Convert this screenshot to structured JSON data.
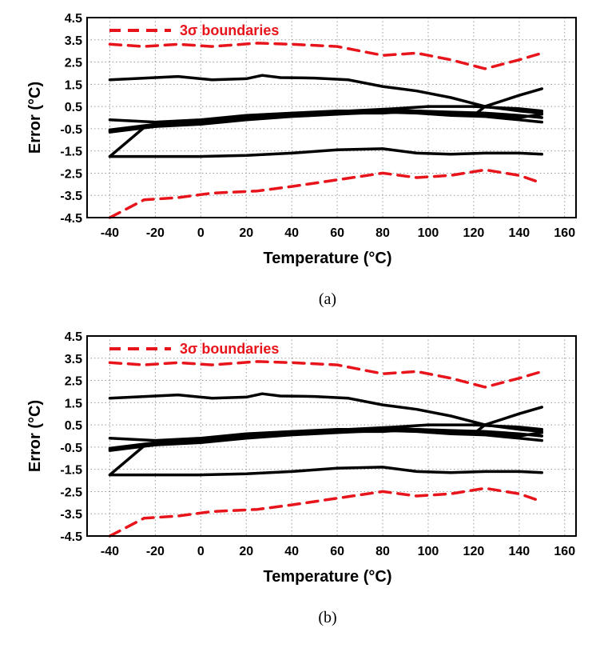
{
  "chart_data": [
    {
      "type": "line",
      "caption": "(a)",
      "xlabel": "Temperature (°C)",
      "ylabel": "Error (°C)",
      "xlim": [
        -50,
        165
      ],
      "ylim": [
        -4.5,
        4.5
      ],
      "xticks": [
        -40,
        -20,
        0,
        20,
        40,
        60,
        80,
        100,
        120,
        140,
        160
      ],
      "yticks": [
        "4.5",
        "3.5",
        "2.5",
        "1.5",
        "0.5",
        "-0.5",
        "-1.5",
        "-2.5",
        "-3.5",
        "-4.5"
      ],
      "grid": true,
      "legend": {
        "placement": "top-left",
        "entries": [
          "3σ boundaries"
        ]
      },
      "series": [
        {
          "name": "3σ boundaries",
          "role": "upper",
          "color": "#e8141b",
          "dash": true,
          "x": [
            -40,
            -25,
            -10,
            5,
            25,
            40,
            60,
            80,
            95,
            110,
            125,
            140,
            150
          ],
          "y": [
            3.3,
            3.2,
            3.3,
            3.2,
            3.35,
            3.3,
            3.2,
            2.8,
            2.9,
            2.6,
            2.2,
            2.6,
            2.9
          ]
        },
        {
          "role": "lower",
          "color": "#e8141b",
          "dash": true,
          "x": [
            -40,
            -25,
            -10,
            5,
            25,
            40,
            60,
            80,
            95,
            110,
            125,
            140,
            150
          ],
          "y": [
            -4.5,
            -3.7,
            -3.6,
            -3.4,
            -3.3,
            -3.1,
            -2.8,
            -2.5,
            -2.7,
            -2.6,
            -2.35,
            -2.6,
            -2.95
          ]
        },
        {
          "color": "#000000",
          "dash": false,
          "x": [
            -40,
            -20,
            -10,
            5,
            20,
            27,
            35,
            50,
            65,
            80,
            95,
            110,
            125,
            140,
            150
          ],
          "y": [
            1.7,
            1.8,
            1.85,
            1.7,
            1.75,
            1.9,
            1.8,
            1.78,
            1.7,
            1.4,
            1.2,
            0.9,
            0.5,
            0.3,
            0.2
          ]
        },
        {
          "color": "#000000",
          "dash": false,
          "x": [
            -40,
            -20,
            0,
            20,
            40,
            60,
            80,
            100,
            120,
            125,
            140,
            150
          ],
          "y": [
            -0.1,
            -0.2,
            -0.1,
            0.1,
            0.2,
            0.3,
            0.3,
            0.2,
            0.1,
            0.5,
            1.0,
            1.3
          ]
        },
        {
          "color": "#000000",
          "dash": false,
          "x": [
            -40,
            -25,
            -10,
            5,
            25,
            45,
            65,
            85,
            100,
            120,
            140,
            150
          ],
          "y": [
            -1.75,
            -0.45,
            -0.3,
            -0.2,
            0.05,
            0.2,
            0.3,
            0.4,
            0.5,
            0.5,
            0.4,
            0.3
          ]
        },
        {
          "color": "#000000",
          "dash": false,
          "x": [
            -40,
            -20,
            0,
            20,
            40,
            60,
            80,
            95,
            110,
            125,
            140,
            150
          ],
          "y": [
            -0.6,
            -0.35,
            -0.2,
            0.0,
            0.1,
            0.2,
            0.2,
            0.3,
            0.2,
            0.1,
            0.0,
            0.15
          ]
        },
        {
          "color": "#000000",
          "dash": false,
          "x": [
            -40,
            -20,
            0,
            20,
            40,
            60,
            80,
            95,
            110,
            125,
            140,
            150
          ],
          "y": [
            -0.65,
            -0.4,
            -0.3,
            -0.1,
            0.05,
            0.15,
            0.25,
            0.2,
            0.1,
            0.05,
            -0.1,
            -0.2
          ]
        },
        {
          "color": "#000000",
          "dash": false,
          "x": [
            -40,
            -20,
            0,
            20,
            40,
            60,
            80,
            95,
            110,
            125,
            140,
            150
          ],
          "y": [
            -0.55,
            -0.3,
            -0.15,
            0.05,
            0.15,
            0.25,
            0.35,
            0.3,
            0.25,
            0.2,
            0.1,
            0.0
          ]
        },
        {
          "color": "#000000",
          "dash": false,
          "x": [
            -40,
            -20,
            0,
            20,
            40,
            60,
            80,
            95,
            110,
            125,
            140,
            150
          ],
          "y": [
            -1.75,
            -1.75,
            -1.75,
            -1.7,
            -1.6,
            -1.45,
            -1.4,
            -1.6,
            -1.65,
            -1.6,
            -1.6,
            -1.65
          ]
        }
      ]
    },
    {
      "type": "line",
      "caption": "(b)",
      "xlabel": "Temperature (°C)",
      "ylabel": "Error (°C)",
      "xlim": [
        -50,
        165
      ],
      "ylim": [
        -4.5,
        4.5
      ],
      "xticks": [
        -40,
        -20,
        0,
        20,
        40,
        60,
        80,
        100,
        120,
        140,
        160
      ],
      "yticks": [
        "4.5",
        "3.5",
        "2.5",
        "1.5",
        "0.5",
        "-0.5",
        "-1.5",
        "-2.5",
        "-3.5",
        "-4.5"
      ],
      "grid": true,
      "legend": {
        "placement": "top-left",
        "entries": [
          "3σ boundaries"
        ]
      },
      "series": [
        {
          "name": "3σ boundaries",
          "role": "upper",
          "color": "#e8141b",
          "dash": true,
          "x": [
            -40,
            -25,
            -10,
            5,
            25,
            40,
            60,
            80,
            95,
            110,
            125,
            140,
            150
          ],
          "y": [
            3.3,
            3.2,
            3.3,
            3.2,
            3.35,
            3.3,
            3.2,
            2.8,
            2.9,
            2.6,
            2.2,
            2.6,
            2.9
          ]
        },
        {
          "role": "lower",
          "color": "#e8141b",
          "dash": true,
          "x": [
            -40,
            -25,
            -10,
            5,
            25,
            40,
            60,
            80,
            95,
            110,
            125,
            140,
            150
          ],
          "y": [
            -4.5,
            -3.7,
            -3.6,
            -3.4,
            -3.3,
            -3.1,
            -2.8,
            -2.5,
            -2.7,
            -2.6,
            -2.35,
            -2.6,
            -2.95
          ]
        },
        {
          "color": "#000000",
          "dash": false,
          "x": [
            -40,
            -20,
            -10,
            5,
            20,
            27,
            35,
            50,
            65,
            80,
            95,
            110,
            125,
            140,
            150
          ],
          "y": [
            1.7,
            1.8,
            1.85,
            1.7,
            1.75,
            1.9,
            1.8,
            1.78,
            1.7,
            1.4,
            1.2,
            0.9,
            0.5,
            0.3,
            0.2
          ]
        },
        {
          "color": "#000000",
          "dash": false,
          "x": [
            -40,
            -20,
            0,
            20,
            40,
            60,
            80,
            100,
            120,
            125,
            140,
            150
          ],
          "y": [
            -0.1,
            -0.2,
            -0.1,
            0.1,
            0.2,
            0.3,
            0.3,
            0.2,
            0.1,
            0.5,
            1.0,
            1.3
          ]
        },
        {
          "color": "#000000",
          "dash": false,
          "x": [
            -40,
            -25,
            -10,
            5,
            25,
            45,
            65,
            85,
            100,
            120,
            140,
            150
          ],
          "y": [
            -1.75,
            -0.45,
            -0.3,
            -0.2,
            0.05,
            0.2,
            0.3,
            0.4,
            0.5,
            0.5,
            0.4,
            0.3
          ]
        },
        {
          "color": "#000000",
          "dash": false,
          "x": [
            -40,
            -20,
            0,
            20,
            40,
            60,
            80,
            95,
            110,
            125,
            140,
            150
          ],
          "y": [
            -0.6,
            -0.35,
            -0.2,
            0.0,
            0.1,
            0.2,
            0.2,
            0.3,
            0.2,
            0.1,
            0.0,
            0.15
          ]
        },
        {
          "color": "#000000",
          "dash": false,
          "x": [
            -40,
            -20,
            0,
            20,
            40,
            60,
            80,
            95,
            110,
            125,
            140,
            150
          ],
          "y": [
            -0.65,
            -0.4,
            -0.3,
            -0.1,
            0.05,
            0.15,
            0.25,
            0.2,
            0.1,
            0.05,
            -0.1,
            -0.2
          ]
        },
        {
          "color": "#000000",
          "dash": false,
          "x": [
            -40,
            -20,
            0,
            20,
            40,
            60,
            80,
            95,
            110,
            125,
            140,
            150
          ],
          "y": [
            -0.55,
            -0.3,
            -0.15,
            0.05,
            0.15,
            0.25,
            0.35,
            0.3,
            0.25,
            0.2,
            0.1,
            0.0
          ]
        },
        {
          "color": "#000000",
          "dash": false,
          "x": [
            -40,
            -20,
            0,
            20,
            40,
            60,
            80,
            95,
            110,
            125,
            140,
            150
          ],
          "y": [
            -1.75,
            -1.75,
            -1.75,
            -1.7,
            -1.6,
            -1.45,
            -1.4,
            -1.6,
            -1.65,
            -1.6,
            -1.6,
            -1.65
          ]
        }
      ]
    }
  ]
}
